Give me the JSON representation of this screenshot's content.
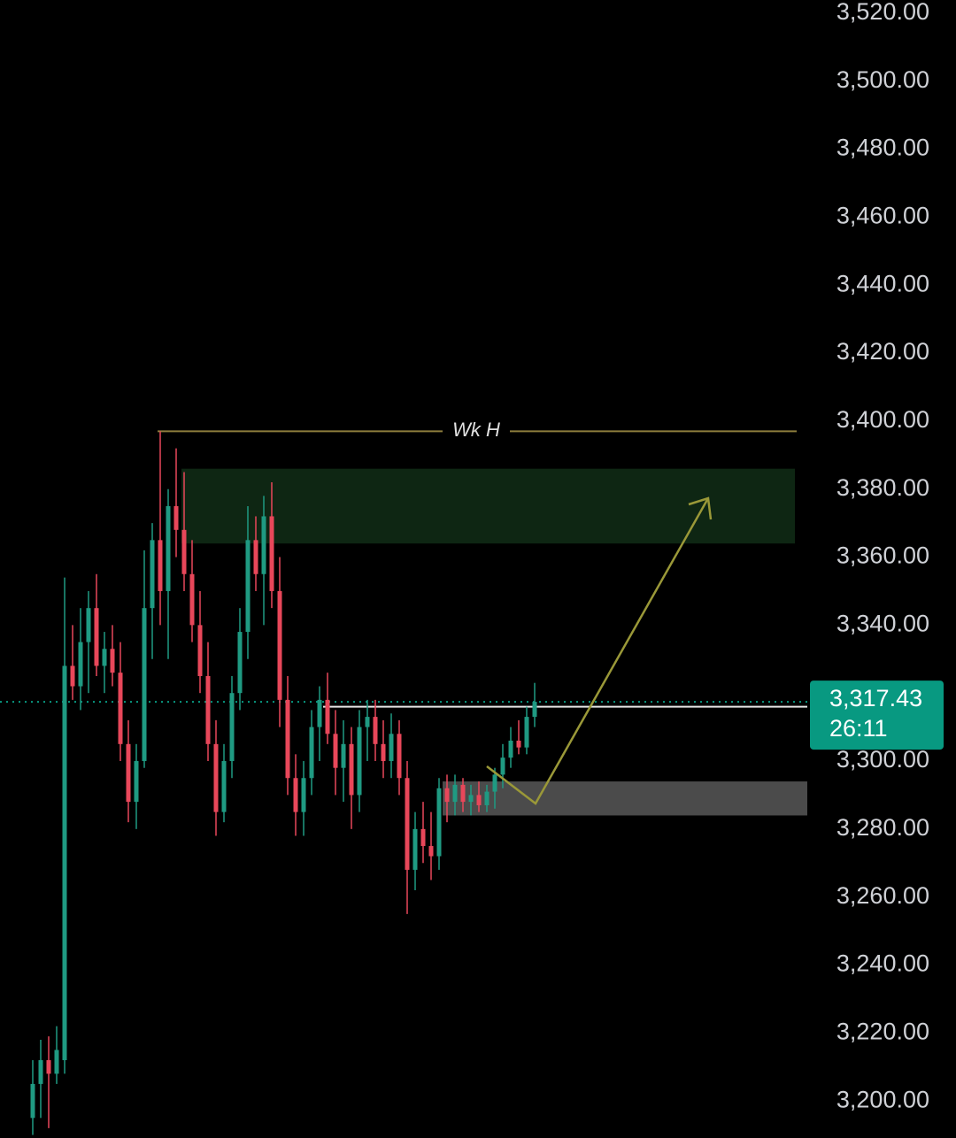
{
  "chart_data": {
    "type": "candlestick",
    "ylim": [
      3189.1,
      3523.9
    ],
    "yticks": [
      {
        "value": 3200,
        "label": "3,200.00"
      },
      {
        "value": 3220,
        "label": "3,220.00"
      },
      {
        "value": 3240,
        "label": "3,240.00"
      },
      {
        "value": 3260,
        "label": "3,260.00"
      },
      {
        "value": 3280,
        "label": "3,280.00"
      },
      {
        "value": 3300,
        "label": "3,300.00"
      },
      {
        "value": 3320,
        "label": "3,320.00"
      },
      {
        "value": 3340,
        "label": "3,340.00"
      },
      {
        "value": 3360,
        "label": "3,360.00"
      },
      {
        "value": 3380,
        "label": "3,380.00"
      },
      {
        "value": 3400,
        "label": "3,400.00"
      },
      {
        "value": 3420,
        "label": "3,420.00"
      },
      {
        "value": 3440,
        "label": "3,440.00"
      },
      {
        "value": 3460,
        "label": "3,460.00"
      },
      {
        "value": 3480,
        "label": "3,480.00"
      },
      {
        "value": 3500,
        "label": "3,500.00"
      },
      {
        "value": 3520,
        "label": "3,520.00"
      }
    ],
    "up_color": "#1f9a82",
    "down_color": "#e8475a",
    "open": [
      3195,
      3205,
      3212,
      3208,
      3212,
      3328,
      3322,
      3335,
      3345,
      3328,
      3333,
      3326,
      3305,
      3288,
      3300,
      3345,
      3365,
      3350,
      3375,
      3368,
      3355,
      3340,
      3325,
      3305,
      3285,
      3300,
      3320,
      3338,
      3365,
      3355,
      3372,
      3350,
      3318,
      3295,
      3285,
      3295,
      3310,
      3318,
      3308,
      3298,
      3305,
      3290,
      3310,
      3313,
      3305,
      3300,
      3308,
      3295,
      3268,
      3280,
      3275,
      3272,
      3292,
      3288,
      3293,
      3288,
      3290,
      3287,
      3291,
      3296,
      3301,
      3306,
      3304,
      3313
    ],
    "high": [
      3212,
      3218,
      3219,
      3222,
      3354,
      3340,
      3345,
      3350,
      3355,
      3338,
      3340,
      3335,
      3312,
      3305,
      3362,
      3370,
      3397,
      3380,
      3392,
      3385,
      3365,
      3350,
      3335,
      3312,
      3305,
      3325,
      3345,
      3375,
      3372,
      3378,
      3382,
      3360,
      3325,
      3302,
      3300,
      3315,
      3322,
      3326,
      3315,
      3312,
      3310,
      3315,
      3318,
      3318,
      3312,
      3314,
      3312,
      3300,
      3285,
      3288,
      3285,
      3295,
      3296,
      3296,
      3295,
      3293,
      3294,
      3293,
      3298,
      3305,
      3310,
      3312,
      3316,
      3323
    ],
    "low": [
      3190,
      3195,
      3192,
      3205,
      3208,
      3318,
      3315,
      3320,
      3325,
      3320,
      3322,
      3300,
      3282,
      3280,
      3298,
      3330,
      3340,
      3330,
      3360,
      3350,
      3335,
      3320,
      3300,
      3278,
      3282,
      3295,
      3315,
      3330,
      3350,
      3340,
      3345,
      3310,
      3290,
      3278,
      3278,
      3290,
      3300,
      3305,
      3290,
      3288,
      3280,
      3285,
      3300,
      3300,
      3295,
      3295,
      3290,
      3255,
      3262,
      3270,
      3265,
      3268,
      3282,
      3284,
      3285,
      3284,
      3285,
      3285,
      3286,
      3292,
      3298,
      3302,
      3302,
      3310
    ],
    "close": [
      3205,
      3212,
      3208,
      3215,
      3328,
      3322,
      3335,
      3345,
      3328,
      3333,
      3326,
      3305,
      3288,
      3300,
      3345,
      3365,
      3350,
      3375,
      3368,
      3355,
      3340,
      3325,
      3305,
      3285,
      3300,
      3320,
      3338,
      3365,
      3355,
      3372,
      3350,
      3318,
      3295,
      3285,
      3295,
      3310,
      3318,
      3308,
      3298,
      3305,
      3290,
      3310,
      3313,
      3305,
      3300,
      3308,
      3295,
      3268,
      3280,
      3275,
      3272,
      3292,
      3288,
      3293,
      3288,
      3290,
      3287,
      3291,
      3296,
      3301,
      3306,
      3304,
      3313,
      3317.43
    ],
    "levels": [
      {
        "value": 3397,
        "label": "Wk H",
        "color": "#8c7d3c"
      },
      {
        "value": 3316,
        "color": "#e6e6e6"
      }
    ],
    "zones": [
      {
        "from": 3364,
        "to": 3386,
        "color": "#0e2613"
      },
      {
        "from": 3284,
        "to": 3294,
        "color": "#4b4b4b"
      }
    ],
    "last_price": {
      "value": 3317.43,
      "label": "3,317.43"
    },
    "countdown": "26:11",
    "last_color": "#089981"
  }
}
